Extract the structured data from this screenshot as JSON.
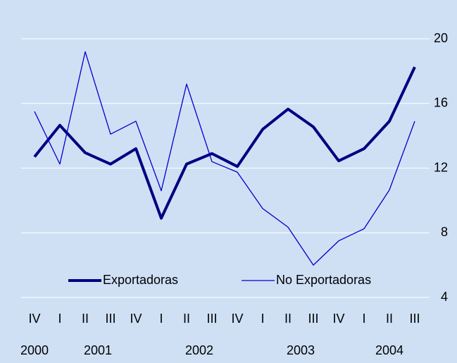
{
  "chart_data": {
    "type": "line",
    "categories": [
      "IV",
      "I",
      "II",
      "III",
      "IV",
      "I",
      "II",
      "III",
      "IV",
      "I",
      "II",
      "III",
      "IV",
      "I",
      "II",
      "III"
    ],
    "x_years": [
      "2000",
      "2001",
      "2001",
      "2001",
      "2001",
      "2002",
      "2002",
      "2002",
      "2002",
      "2003",
      "2003",
      "2003",
      "2003",
      "2004",
      "2004",
      "2004"
    ],
    "series": [
      {
        "name": "Exportadoras",
        "color": "#000080",
        "values": [
          12.7,
          14.65,
          12.95,
          12.25,
          13.2,
          8.9,
          12.25,
          12.9,
          12.1,
          14.4,
          15.65,
          14.55,
          12.45,
          13.2,
          14.9,
          18.25
        ]
      },
      {
        "name": "No Exportadoras",
        "color": "#0000cc",
        "values": [
          15.5,
          12.25,
          19.2,
          14.1,
          14.9,
          10.6,
          17.2,
          12.4,
          11.75,
          9.5,
          8.35,
          6.0,
          7.5,
          8.25,
          10.65,
          14.9
        ]
      }
    ],
    "ylim": [
      4,
      20
    ],
    "yticks": [
      4,
      8,
      12,
      16,
      20
    ],
    "grid": true,
    "background": "#cfe0f5"
  }
}
